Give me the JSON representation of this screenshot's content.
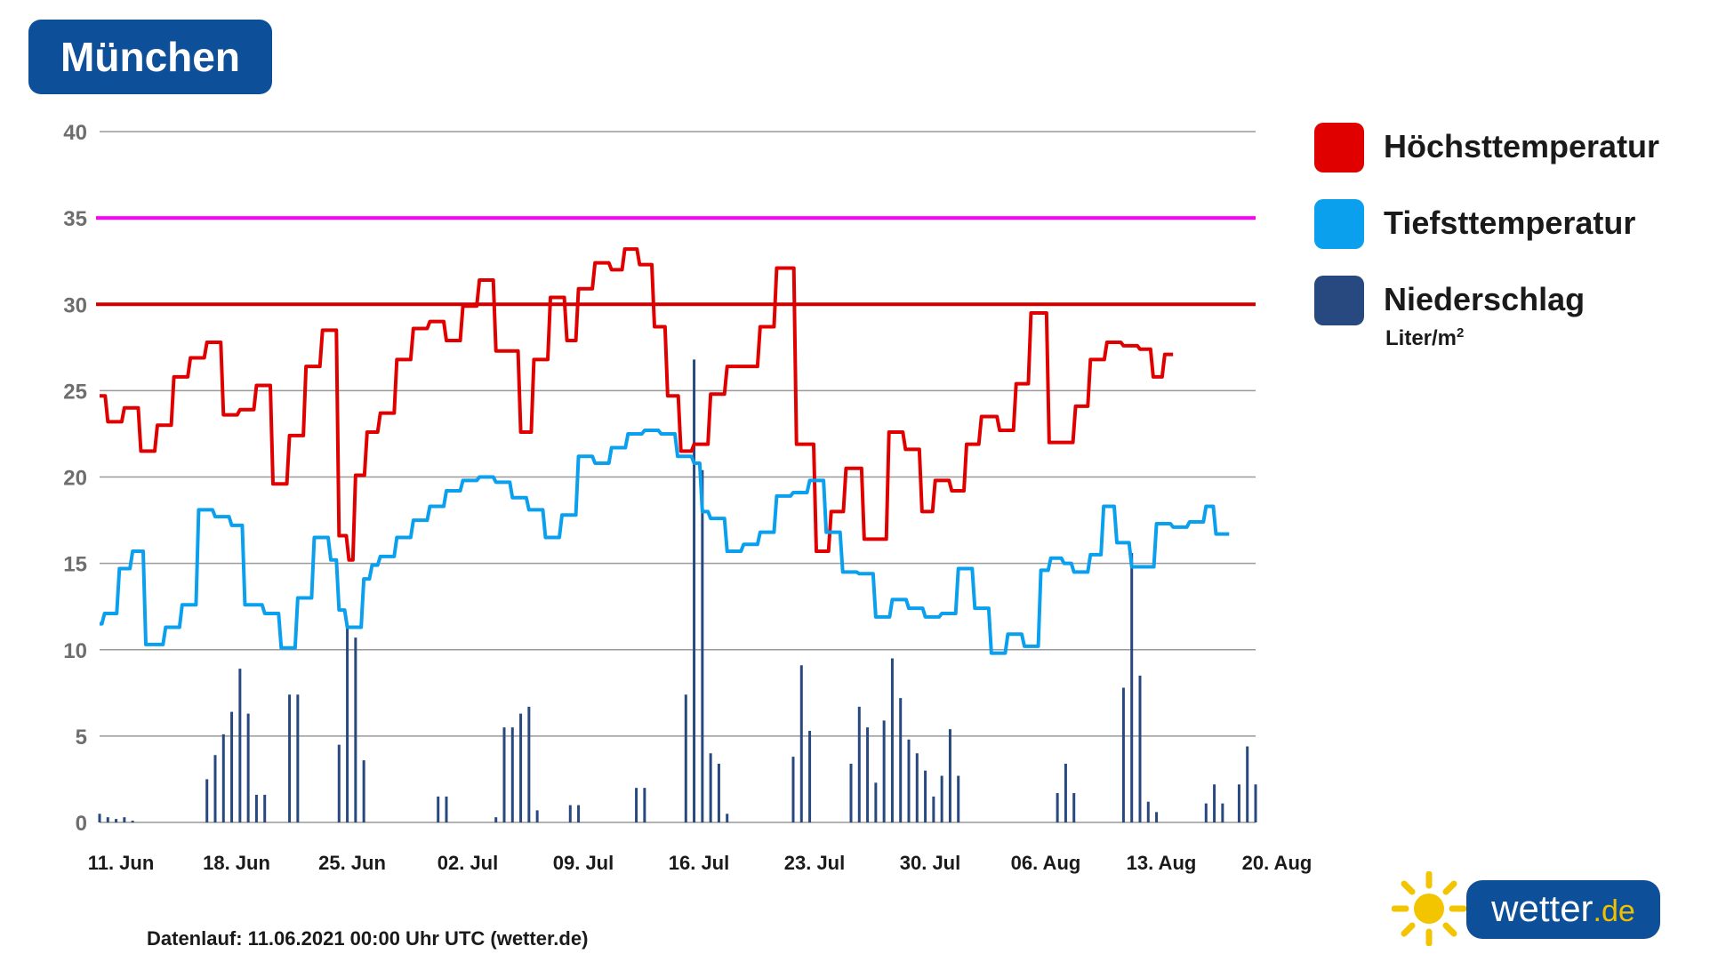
{
  "header": {
    "title": "München"
  },
  "legend": {
    "items": [
      {
        "label": "Höchsttemperatur",
        "color": "#e00000"
      },
      {
        "label": "Tiefsttemperatur",
        "color": "#0aa0ee"
      },
      {
        "label": "Niederschlag",
        "color": "#28497f",
        "unit": "Liter/m",
        "unit_sup": "2"
      }
    ]
  },
  "footer": {
    "text": "Datenlauf: 11.06.2021 00:00 Uhr UTC (wetter.de)"
  },
  "logo": {
    "main": "wetter",
    "suffix": ".de",
    "icon": "sun-icon"
  },
  "colors": {
    "max": "#e00000",
    "min": "#0aa0ee",
    "precip": "#28497f",
    "hot_line": "#ff00ff",
    "warm_line": "#cc0000",
    "grid": "#9a9a9a",
    "brand": "#0d4f99"
  },
  "chart_data": {
    "type": "line",
    "title": "München",
    "xlabel": "",
    "ylabel": "",
    "ylim": [
      0,
      40
    ],
    "yticks": [
      0,
      5,
      10,
      15,
      20,
      25,
      30,
      35,
      40
    ],
    "x_start": "11. Jun",
    "x_end": "20. Aug",
    "xticks": [
      "11. Jun",
      "18. Jun",
      "25. Jun",
      "02. Jul",
      "09. Jul",
      "16. Jul",
      "23. Jul",
      "30. Jul",
      "06. Aug",
      "13. Aug",
      "20. Aug"
    ],
    "grid": true,
    "legend_position": "right",
    "reference_lines": [
      {
        "value": 35,
        "color": "#ff00ff"
      },
      {
        "value": 30,
        "color": "#cc0000"
      }
    ],
    "series": [
      {
        "name": "Höchsttemperatur",
        "color": "#e00000",
        "points": [
          [
            0,
            24.7
          ],
          [
            0.5,
            23.2
          ],
          [
            1.5,
            24
          ],
          [
            2.5,
            21.5
          ],
          [
            3.5,
            23
          ],
          [
            4.5,
            25.8
          ],
          [
            5.5,
            26.9
          ],
          [
            6.5,
            27.8
          ],
          [
            7.5,
            23.6
          ],
          [
            8.5,
            23.9
          ],
          [
            9.5,
            25.3
          ],
          [
            10.5,
            19.6
          ],
          [
            11.5,
            22.4
          ],
          [
            12.5,
            26.4
          ],
          [
            13.5,
            28.5
          ],
          [
            14.5,
            16.6
          ],
          [
            15.1,
            15.2
          ],
          [
            15.5,
            20.1
          ],
          [
            16.2,
            22.6
          ],
          [
            17,
            23.7
          ],
          [
            18,
            26.8
          ],
          [
            19,
            28.6
          ],
          [
            20,
            29
          ],
          [
            21,
            27.9
          ],
          [
            22,
            29.9
          ],
          [
            23,
            31.4
          ],
          [
            24,
            27.3
          ],
          [
            25.5,
            22.6
          ],
          [
            26.3,
            26.8
          ],
          [
            27.3,
            30.4
          ],
          [
            28.3,
            27.9
          ],
          [
            29,
            30.9
          ],
          [
            30,
            32.4
          ],
          [
            31,
            32
          ],
          [
            31.8,
            33.2
          ],
          [
            32.7,
            32.3
          ],
          [
            33.6,
            28.7
          ],
          [
            34.4,
            24.7
          ],
          [
            35.2,
            21.5
          ],
          [
            36,
            21.9
          ],
          [
            37,
            24.8
          ],
          [
            38,
            26.4
          ],
          [
            40,
            28.7
          ],
          [
            41,
            32.1
          ],
          [
            42.2,
            21.9
          ],
          [
            43.4,
            15.7
          ],
          [
            44.3,
            18
          ],
          [
            45.2,
            20.5
          ],
          [
            46.3,
            16.4
          ],
          [
            47.8,
            22.6
          ],
          [
            48.8,
            21.6
          ],
          [
            49.8,
            18
          ],
          [
            50.6,
            19.8
          ],
          [
            51.6,
            19.2
          ],
          [
            52.5,
            21.9
          ],
          [
            53.4,
            23.5
          ],
          [
            54.5,
            22.7
          ],
          [
            55.5,
            25.4
          ],
          [
            56.4,
            29.5
          ],
          [
            57.5,
            22
          ],
          [
            59.1,
            24.1
          ],
          [
            60,
            26.8
          ],
          [
            61,
            27.8
          ],
          [
            62,
            27.6
          ],
          [
            63,
            27.4
          ],
          [
            63.8,
            25.8
          ],
          [
            64.5,
            27.1
          ],
          [
            65,
            27.1
          ]
        ]
      },
      {
        "name": "Tiefsttemperatur",
        "color": "#0aa0ee",
        "points": [
          [
            0,
            11.5
          ],
          [
            0.3,
            12.1
          ],
          [
            1.2,
            14.7
          ],
          [
            2,
            15.7
          ],
          [
            2.8,
            10.3
          ],
          [
            4,
            11.3
          ],
          [
            5,
            12.6
          ],
          [
            6,
            18.1
          ],
          [
            7,
            17.7
          ],
          [
            8,
            17.2
          ],
          [
            8.8,
            12.6
          ],
          [
            10,
            12.1
          ],
          [
            11,
            10.1
          ],
          [
            12,
            13
          ],
          [
            13,
            16.5
          ],
          [
            14,
            15.2
          ],
          [
            14.5,
            12.3
          ],
          [
            15,
            11.3
          ],
          [
            16,
            14.1
          ],
          [
            16.5,
            14.9
          ],
          [
            17,
            15.4
          ],
          [
            18,
            16.5
          ],
          [
            19,
            17.5
          ],
          [
            20,
            18.3
          ],
          [
            21,
            19.2
          ],
          [
            22,
            19.8
          ],
          [
            23,
            20
          ],
          [
            24,
            19.7
          ],
          [
            25,
            18.8
          ],
          [
            26,
            18.1
          ],
          [
            27,
            16.5
          ],
          [
            28,
            17.8
          ],
          [
            29,
            21.2
          ],
          [
            30,
            20.8
          ],
          [
            31,
            21.7
          ],
          [
            32,
            22.5
          ],
          [
            33,
            22.7
          ],
          [
            34,
            22.5
          ],
          [
            35,
            21.2
          ],
          [
            36,
            20.8
          ],
          [
            36.5,
            18
          ],
          [
            37,
            17.6
          ],
          [
            38,
            15.7
          ],
          [
            39,
            16.1
          ],
          [
            40,
            16.8
          ],
          [
            41,
            18.9
          ],
          [
            42,
            19.1
          ],
          [
            43,
            19.8
          ],
          [
            44,
            16.8
          ],
          [
            45,
            14.5
          ],
          [
            46,
            14.4
          ],
          [
            47,
            11.9
          ],
          [
            48,
            12.9
          ],
          [
            49,
            12.4
          ],
          [
            50,
            11.9
          ],
          [
            51,
            12.1
          ],
          [
            52,
            14.7
          ],
          [
            53,
            12.4
          ],
          [
            54,
            9.8
          ],
          [
            55,
            10.9
          ],
          [
            56,
            10.2
          ],
          [
            57,
            14.6
          ],
          [
            57.6,
            15.3
          ],
          [
            58.4,
            15
          ],
          [
            59,
            14.5
          ],
          [
            60,
            15.5
          ],
          [
            60.8,
            18.3
          ],
          [
            61.6,
            16.2
          ],
          [
            62.5,
            14.8
          ],
          [
            64,
            17.3
          ],
          [
            65,
            17.1
          ],
          [
            66,
            17.4
          ],
          [
            67,
            18.3
          ],
          [
            67.6,
            16.7
          ],
          [
            68.4,
            16.7
          ]
        ]
      },
      {
        "name": "Niederschlag",
        "type": "bar",
        "color": "#28497f",
        "points": [
          [
            0,
            0.5
          ],
          [
            0.5,
            0.3
          ],
          [
            1,
            0.2
          ],
          [
            1.5,
            0.3
          ],
          [
            2,
            0.1
          ],
          [
            6.5,
            2.5
          ],
          [
            7,
            3.9
          ],
          [
            7.5,
            5.1
          ],
          [
            8,
            6.4
          ],
          [
            8.5,
            8.9
          ],
          [
            9,
            6.3
          ],
          [
            9.5,
            1.6
          ],
          [
            10,
            1.6
          ],
          [
            11.5,
            7.4
          ],
          [
            12,
            7.4
          ],
          [
            14.5,
            4.5
          ],
          [
            15,
            11.3
          ],
          [
            15.5,
            10.7
          ],
          [
            16,
            3.6
          ],
          [
            20.5,
            1.5
          ],
          [
            21,
            1.5
          ],
          [
            24,
            0.3
          ],
          [
            24.5,
            5.5
          ],
          [
            25,
            5.5
          ],
          [
            25.5,
            6.3
          ],
          [
            26,
            6.7
          ],
          [
            26.5,
            0.7
          ],
          [
            28.5,
            1
          ],
          [
            29,
            1
          ],
          [
            32.5,
            2
          ],
          [
            33,
            2
          ],
          [
            35.5,
            7.4
          ],
          [
            36,
            26.8
          ],
          [
            36.5,
            20.4
          ],
          [
            37,
            4
          ],
          [
            37.5,
            3.4
          ],
          [
            38,
            0.5
          ],
          [
            42,
            3.8
          ],
          [
            42.5,
            9.1
          ],
          [
            43,
            5.3
          ],
          [
            45.5,
            3.4
          ],
          [
            46,
            6.7
          ],
          [
            46.5,
            5.5
          ],
          [
            47,
            2.3
          ],
          [
            47.5,
            5.9
          ],
          [
            48,
            9.5
          ],
          [
            48.5,
            7.2
          ],
          [
            49,
            4.8
          ],
          [
            49.5,
            4
          ],
          [
            50,
            3
          ],
          [
            50.5,
            1.5
          ],
          [
            51,
            2.7
          ],
          [
            51.5,
            5.4
          ],
          [
            52,
            2.7
          ],
          [
            58,
            1.7
          ],
          [
            58.5,
            3.4
          ],
          [
            59,
            1.7
          ],
          [
            62,
            7.8
          ],
          [
            62.5,
            15.6
          ],
          [
            63,
            8.5
          ],
          [
            63.5,
            1.2
          ],
          [
            64,
            0.6
          ],
          [
            67,
            1.1
          ],
          [
            67.5,
            2.2
          ],
          [
            68,
            1.1
          ],
          [
            69,
            2.2
          ],
          [
            69.5,
            4.4
          ],
          [
            70,
            2.2
          ]
        ]
      }
    ]
  }
}
